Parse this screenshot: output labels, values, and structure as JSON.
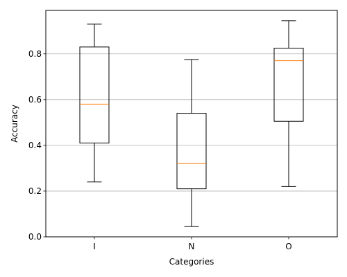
{
  "chart_data": {
    "type": "boxplot",
    "title": "",
    "xlabel": "Categories",
    "ylabel": "Accuracy",
    "ylim": [
      0.0,
      0.99
    ],
    "yticks": [
      0.0,
      0.2,
      0.4,
      0.6,
      0.8
    ],
    "ytick_labels": [
      "0.0",
      "0.2",
      "0.4",
      "0.6",
      "0.8"
    ],
    "grid": "y-major",
    "legend": "none",
    "categories": [
      "I",
      "N",
      "O"
    ],
    "boxes": [
      {
        "category": "I",
        "whisker_low": 0.24,
        "q1": 0.41,
        "median": 0.58,
        "q3": 0.83,
        "whisker_high": 0.93
      },
      {
        "category": "N",
        "whisker_low": 0.045,
        "q1": 0.21,
        "median": 0.32,
        "q3": 0.54,
        "whisker_high": 0.775
      },
      {
        "category": "O",
        "whisker_low": 0.22,
        "q1": 0.505,
        "median": 0.77,
        "q3": 0.825,
        "whisker_high": 0.945
      }
    ],
    "colors": {
      "box": "#000000",
      "median": "#ff7f0e",
      "grid": "#b0b0b0",
      "axes": "#000000"
    }
  }
}
